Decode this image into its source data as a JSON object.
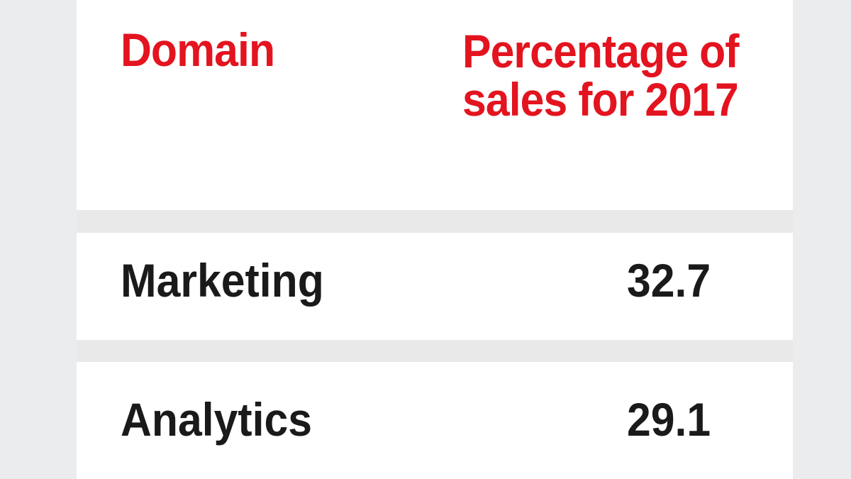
{
  "table": {
    "headers": {
      "domain": "Domain",
      "percentage": "Percentage of sales for 2017"
    },
    "rows": [
      {
        "domain": "Marketing",
        "value": "32.7"
      },
      {
        "domain": "Analytics",
        "value": "29.1"
      }
    ]
  },
  "colors": {
    "header_text": "#e3141f",
    "body_text": "#1a1a1a",
    "background": "#ebecee",
    "panel": "#ffffff"
  },
  "chart_data": {
    "type": "table",
    "title": "",
    "columns": [
      "Domain",
      "Percentage of sales for 2017"
    ],
    "categories": [
      "Marketing",
      "Analytics"
    ],
    "values": [
      32.7,
      29.1
    ],
    "rows": [
      [
        "Marketing",
        32.7
      ],
      [
        "Analytics",
        29.1
      ]
    ]
  }
}
